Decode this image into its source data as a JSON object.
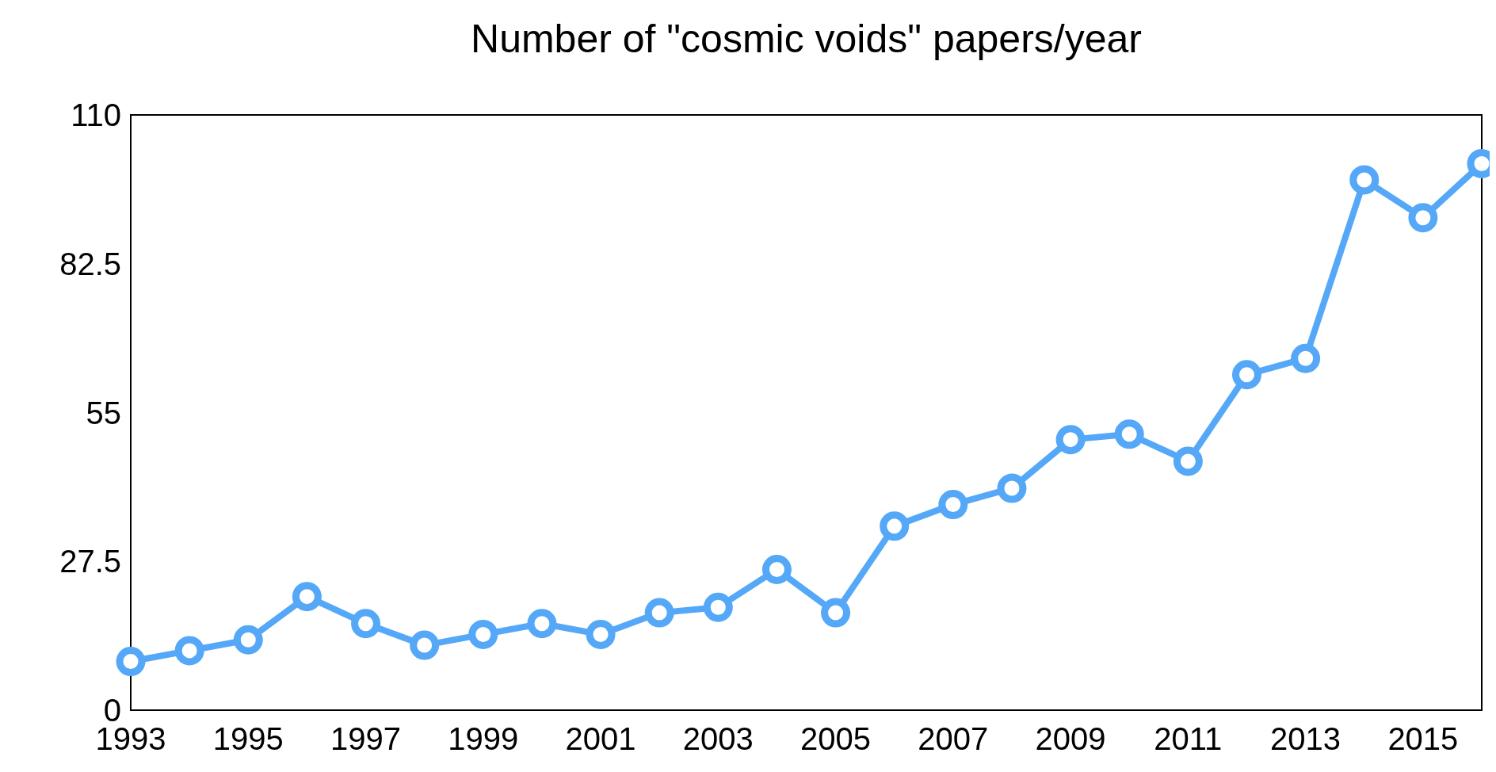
{
  "chart_data": {
    "type": "line",
    "title": "Number of \"cosmic voids\" papers/year",
    "x": [
      1993,
      1994,
      1995,
      1996,
      1997,
      1998,
      1999,
      2000,
      2001,
      2002,
      2003,
      2004,
      2005,
      2006,
      2007,
      2008,
      2009,
      2010,
      2011,
      2012,
      2013,
      2014,
      2015,
      2016
    ],
    "series": [
      {
        "color": "#55a8f7",
        "values": [
          9,
          11,
          13,
          21,
          16,
          12,
          14,
          16,
          14,
          18,
          19,
          26,
          18,
          34,
          38,
          41,
          50,
          51,
          46,
          62,
          65,
          98,
          91,
          101
        ]
      }
    ],
    "xlim": [
      1993,
      2016
    ],
    "xticks": [
      1993,
      1995,
      1997,
      1999,
      2001,
      2003,
      2005,
      2007,
      2009,
      2011,
      2013,
      2015
    ],
    "ylim": [
      0,
      110
    ],
    "yticks": [
      0,
      27.5,
      55,
      82.5,
      110
    ],
    "marker": "circle",
    "line_style": "solid",
    "grid": false
  }
}
